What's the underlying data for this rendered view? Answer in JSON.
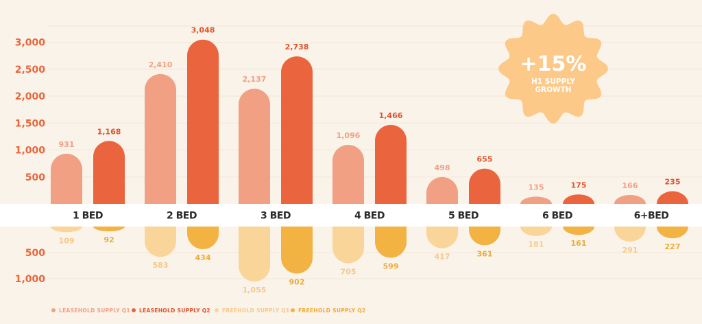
{
  "colors": {
    "background": "#faf3e9",
    "band": "#ffffff",
    "gridline": "#f3e6d8",
    "axis_text": "#e9663b",
    "category_text": "#2b2b2b",
    "badge": "#fcc988"
  },
  "badge": {
    "value": "+15%",
    "line1": "H1 SUPPLY",
    "line2": "GROWTH"
  },
  "chart_data": {
    "type": "bar",
    "categories": [
      "1 BED",
      "2 BED",
      "3 BED",
      "4 BED",
      "5 BED",
      "6 BED",
      "6+BED"
    ],
    "upper_axis": {
      "ticks": [
        "500",
        "1,000",
        "1,500",
        "2,000",
        "2,500",
        "3,000"
      ],
      "tick_values": [
        500,
        1000,
        1500,
        2000,
        2500,
        3000
      ],
      "ylim": [
        0,
        3200
      ]
    },
    "lower_axis": {
      "ticks": [
        "500",
        "1,000"
      ],
      "tick_values": [
        500,
        1000
      ],
      "ylim": [
        0,
        1100
      ],
      "direction": "down"
    },
    "series": [
      {
        "name": "LEASEHOLD SUPPLY Q1",
        "side": "up",
        "color": "#f1a084",
        "label_color": "#f1a084",
        "values": [
          931,
          2410,
          2137,
          1096,
          498,
          135,
          166
        ],
        "labels": [
          "931",
          "2,410",
          "2,137",
          "1,096",
          "498",
          "135",
          "166"
        ]
      },
      {
        "name": "LEASEHOLD SUPPLY Q2",
        "side": "up",
        "color": "#ea643d",
        "label_color": "#e0532b",
        "values": [
          1168,
          3048,
          2738,
          1466,
          655,
          175,
          235
        ],
        "labels": [
          "1,168",
          "3,048",
          "2,738",
          "1,466",
          "655",
          "175",
          "235"
        ]
      },
      {
        "name": "FREEHOLD SUPPLY Q1",
        "side": "down",
        "color": "#fad59a",
        "label_color": "#f6c98a",
        "values": [
          109,
          583,
          1055,
          705,
          417,
          181,
          291
        ],
        "labels": [
          "109",
          "583",
          "1,055",
          "705",
          "417",
          "181",
          "291"
        ]
      },
      {
        "name": "FREEHOLD SUPPLY Q2",
        "side": "down",
        "color": "#f2b343",
        "label_color": "#eeab3a",
        "values": [
          92,
          434,
          902,
          599,
          361,
          161,
          227
        ],
        "labels": [
          "92",
          "434",
          "902",
          "599",
          "361",
          "161",
          "227"
        ]
      }
    ],
    "title": "",
    "xlabel": "",
    "ylabel": "",
    "grid": true,
    "legend": "bottom-left"
  }
}
